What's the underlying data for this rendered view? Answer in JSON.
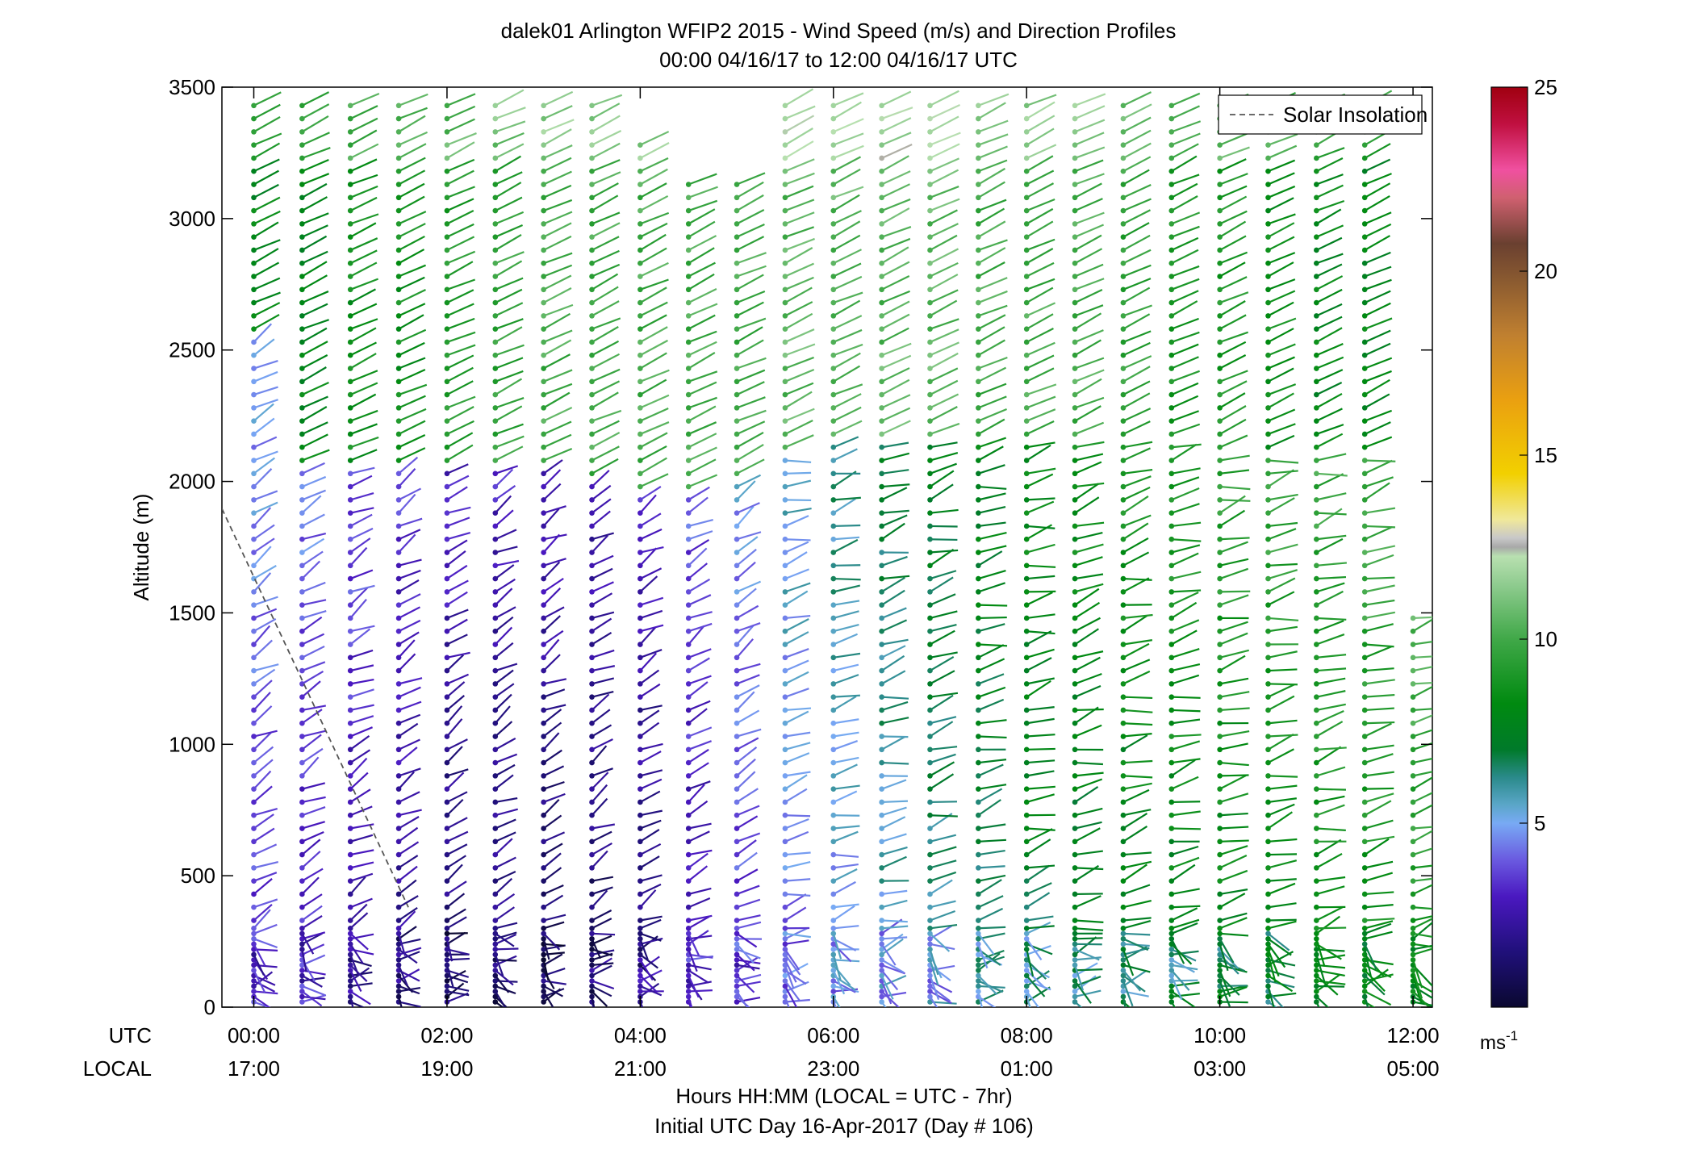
{
  "chart_data": {
    "type": "wind-barb-profile",
    "title_line1": "dalek01 Arlington WFIP2 2015 - Wind Speed (m/s) and Direction Profiles",
    "title_line2": "00:00 04/16/17 to 12:00 04/16/17  UTC",
    "ylabel": "Altitude (m)",
    "ylim": [
      0,
      3500
    ],
    "yticks": [
      "0",
      "500",
      "1000",
      "1500",
      "2000",
      "2500",
      "3000",
      "3500"
    ],
    "xlim_hours": [
      -0.33,
      12.2
    ],
    "utc_label": "UTC",
    "local_label": "LOCAL",
    "utc_ticks": [
      "00:00",
      "02:00",
      "04:00",
      "06:00",
      "08:00",
      "10:00",
      "12:00"
    ],
    "local_ticks": [
      "17:00",
      "19:00",
      "21:00",
      "23:00",
      "01:00",
      "03:00",
      "05:00"
    ],
    "xlabel_line1": "Hours HH:MM  (LOCAL = UTC - 7hr)",
    "xlabel_line2": "Initial UTC Day 16-Apr-2017 (Day # 106)",
    "legend": {
      "label": "Solar Insolation",
      "placement": "top-right"
    },
    "solar_insolation_line": {
      "hours": [
        -0.5,
        1.6
      ],
      "altitude_m": [
        2030,
        380
      ]
    },
    "colorbar": {
      "min": 0,
      "max": 25,
      "ticks": [
        "5",
        "10",
        "15",
        "20",
        "25"
      ],
      "unit_base": "ms",
      "unit_exp": "-1"
    },
    "profile_times_hours": [
      0.0,
      0.5,
      1.0,
      1.5,
      2.0,
      2.5,
      3.0,
      3.5,
      4.0,
      4.5,
      5.0,
      5.5,
      6.0,
      6.5,
      7.0,
      7.5,
      8.0,
      8.5,
      9.0,
      9.5,
      10.0,
      10.5,
      11.0,
      11.5,
      12.0
    ],
    "profile_top_m": [
      3450,
      3450,
      3450,
      3450,
      3450,
      3450,
      3450,
      3450,
      3300,
      3150,
      3150,
      3450,
      3450,
      3450,
      3450,
      3450,
      3450,
      3450,
      3450,
      3450,
      3450,
      3450,
      3450,
      3450,
      1500
    ],
    "boundary_layer_height_m": [
      2550,
      2050,
      2050,
      2050,
      2050,
      2050,
      2050,
      2000,
      1950,
      1950,
      2000,
      2100,
      2150,
      2150,
      2150,
      2150,
      2150,
      2150,
      2150,
      2150,
      2150,
      2100,
      2100,
      2100,
      1500
    ],
    "aloft_speed_ms": [
      8,
      8,
      8.5,
      8.5,
      9,
      9.5,
      10,
      10,
      10,
      10,
      10,
      10.5,
      10.5,
      10.5,
      10.5,
      10,
      10,
      10,
      9.5,
      9,
      9,
      8.5,
      8,
      8,
      8
    ],
    "lower_speed_ms": [
      3.5,
      3.0,
      2.5,
      2.0,
      1.5,
      1.5,
      1.2,
      1.2,
      1.5,
      2.5,
      3.5,
      4.2,
      4.8,
      5.5,
      6.0,
      6.5,
      7.0,
      7.2,
      7.5,
      7.8,
      8.0,
      8.2,
      8.3,
      8.5,
      8.8
    ],
    "near_surface_speed_ms": [
      3.0,
      3.0,
      2.0,
      1.5,
      1.0,
      1.0,
      1.0,
      1.5,
      2.0,
      3.0,
      3.5,
      4.0,
      4.5,
      5.0,
      5.0,
      5.5,
      6.0,
      6.0,
      6.5,
      6.5,
      7.0,
      7.0,
      7.5,
      7.5,
      8.0
    ]
  }
}
